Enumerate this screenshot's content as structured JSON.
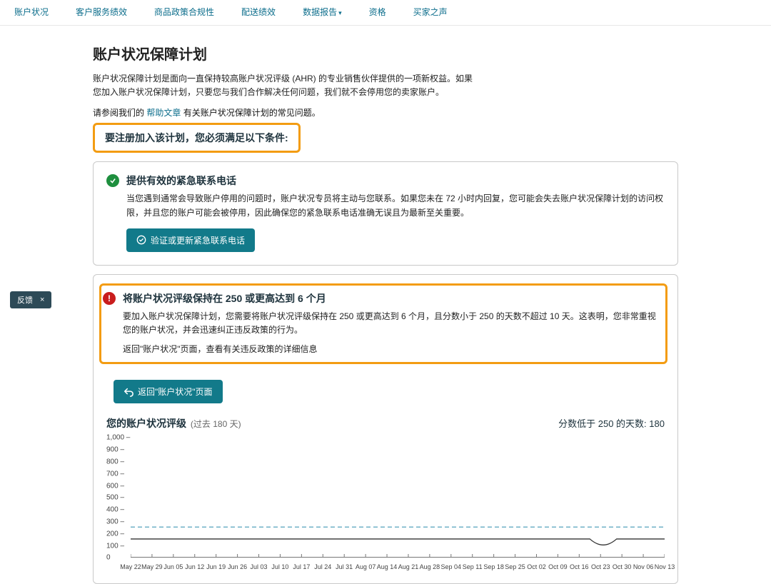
{
  "tabs": {
    "items": [
      "账户状况",
      "客户服务绩效",
      "商品政策合规性",
      "配送绩效",
      "数据报告",
      "资格",
      "买家之声"
    ],
    "dropdownIndex": 4
  },
  "page": {
    "title": "账户状况保障计划",
    "intro1": "账户状况保障计划是面向一直保持较高账户状况评级 (AHR) 的专业销售伙伴提供的一项新权益。如果",
    "intro2": "您加入账户状况保障计划，只要您与我们合作解决任何问题，我们就不会停用您的卖家账户。",
    "helpPrefix": "请参阅我们的 ",
    "helpLink": "帮助文章",
    "helpSuffix": " 有关账户状况保障计划的常见问题。",
    "requirement": "要注册加入该计划，您必须满足以下条件:"
  },
  "card1": {
    "title": "提供有效的紧急联系电话",
    "body": "当您遇到通常会导致账户停用的问题时，账户状况专员将主动与您联系。如果您未在 72 小时内回复，您可能会失去账户状况保障计划的访问权限，并且您的账户可能会被停用，因此确保您的紧急联系电话准确无误且为最新至关重要。",
    "button": "验证或更新紧急联系电话"
  },
  "card2": {
    "title": "将账户状况评级保持在 250 或更高达到 6 个月",
    "body1": "要加入账户状况保障计划，您需要将账户状况评级保持在 250 或更高达到 6 个月，且分数小于 250 的天数不超过 10 天。这表明，您非常重视您的账户状况，并会迅速纠正违反政策的行为。",
    "body2": "返回\"账户状况\"页面，查看有关违反政策的详细信息",
    "button": "返回\"账户状况\"页面"
  },
  "chart": {
    "title": "您的账户状况评级",
    "subtitle": "(过去 180 天)",
    "rightLabel": "分数低于 250 的天数:",
    "rightValue": "180",
    "ylim": [
      0,
      1000
    ],
    "ytick_step": 100,
    "yticks": [
      0,
      100,
      200,
      300,
      400,
      500,
      600,
      700,
      800,
      900,
      1000
    ],
    "threshold": 250,
    "threshold_color": "#6fb1c7",
    "threshold_dash": "6,4",
    "series_value": 150,
    "series_color": "#333333",
    "series_width": 1.3,
    "dip": {
      "start_pct": 86,
      "end_pct": 91,
      "depth_value": 100
    },
    "xlabels": [
      "May 22",
      "May 29",
      "Jun 05",
      "Jun 12",
      "Jun 19",
      "Jun 26",
      "Jul 03",
      "Jul 10",
      "Jul 17",
      "Jul 24",
      "Jul 31",
      "Aug 07",
      "Aug 14",
      "Aug 21",
      "Aug 28",
      "Sep 04",
      "Sep 11",
      "Sep 18",
      "Sep 25",
      "Oct 02",
      "Oct 09",
      "Oct 16",
      "Oct 23",
      "Oct 30",
      "Nov 06",
      "Nov 13"
    ],
    "tick_label_fontsize": 10,
    "plot_bg": "#ffffff"
  },
  "feedback": {
    "label": "反馈",
    "close": "×"
  },
  "colors": {
    "link": "#0d6e8c",
    "primary_btn": "#127a8a",
    "highlight_border": "#f39c12",
    "ok_icon": "#1e8f3e",
    "err_icon": "#c91d1d"
  }
}
